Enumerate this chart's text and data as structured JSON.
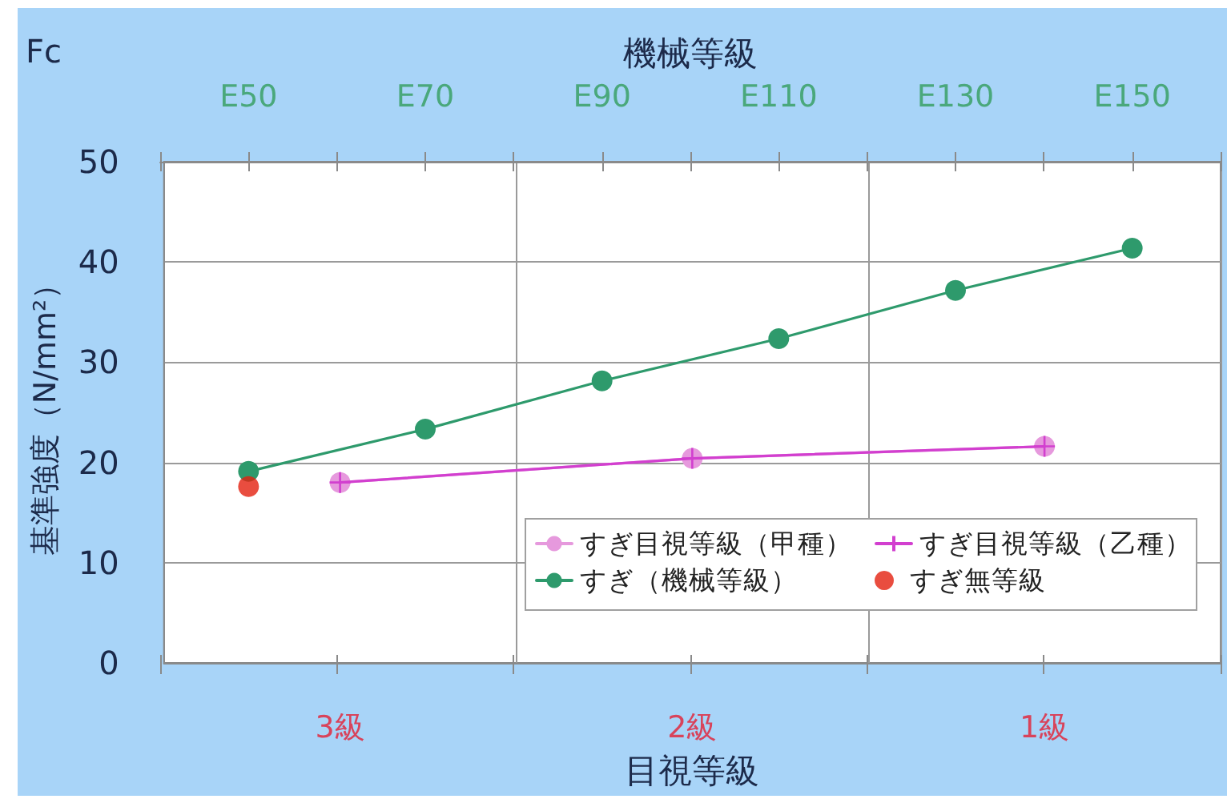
{
  "chart_data": [
    {
      "type": "line",
      "xlabel": "目視等級",
      "ylabel": "基準強度（N/mm²）",
      "annotations": [
        "Fc"
      ],
      "categories": [
        "3級",
        "2級",
        "1級"
      ],
      "ylim": [
        0,
        50
      ],
      "yticks": [
        0,
        10,
        20,
        30,
        40,
        50
      ],
      "grid": true,
      "legend": "bottom right",
      "series": [
        {
          "name": "すぎ目視等級（甲種）",
          "color": "#e699dd",
          "marker": "circle",
          "values": [
            18.0,
            20.4,
            21.6
          ]
        },
        {
          "name": "すぎ目視等級（乙種）",
          "color": "#d23fcf",
          "marker": "cross",
          "values": [
            18.0,
            20.4,
            21.6
          ]
        }
      ]
    },
    {
      "type": "line",
      "xlabel": "機械等級",
      "categories": [
        "E50",
        "E70",
        "E90",
        "E110",
        "E130",
        "E150"
      ],
      "ylim": [
        0,
        50
      ],
      "yticks": [
        0,
        10,
        20,
        30,
        40,
        50
      ],
      "tick_labels": "x",
      "legend": "bottom right",
      "series": [
        {
          "name": "すぎ（機械等級）",
          "color": "#2e9a6c",
          "marker": "circle",
          "values": [
            19.2,
            23.4,
            28.2,
            32.4,
            37.2,
            41.4
          ]
        },
        {
          "name": "すぎ無等級",
          "type": "scatter",
          "color": "#e3200f",
          "marker": "circle",
          "values": [
            17.7,
            null,
            null,
            null,
            null,
            null
          ]
        }
      ]
    }
  ]
}
